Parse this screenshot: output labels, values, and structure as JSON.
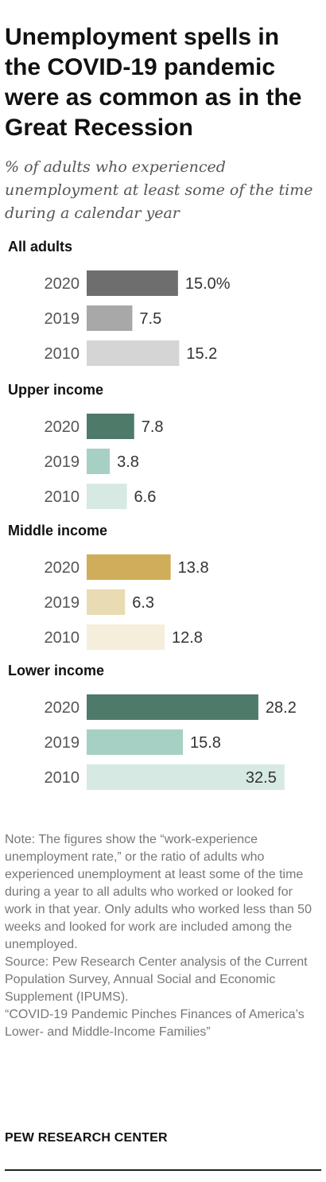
{
  "header": {
    "title": "Unemployment spells in the COVID-19 pandemic were as common as in the Great Recession",
    "subtitle": "% of adults who experienced unemployment at least some of the time during a calendar year"
  },
  "chart_data": {
    "type": "bar",
    "orientation": "horizontal",
    "xlim": [
      0,
      35
    ],
    "grid": false,
    "groups": [
      {
        "name": "All adults",
        "bars": [
          {
            "category": "2020",
            "value": 15.0,
            "label": "15.0%",
            "color": "#6e6e6e"
          },
          {
            "category": "2019",
            "value": 7.5,
            "label": "7.5",
            "color": "#a8a8a8"
          },
          {
            "category": "2010",
            "value": 15.2,
            "label": "15.2",
            "color": "#d5d5d5"
          }
        ]
      },
      {
        "name": "Upper income",
        "bars": [
          {
            "category": "2020",
            "value": 7.8,
            "label": "7.8",
            "color": "#4e7a6a"
          },
          {
            "category": "2019",
            "value": 3.8,
            "label": "3.8",
            "color": "#a7d0c5"
          },
          {
            "category": "2010",
            "value": 6.6,
            "label": "6.6",
            "color": "#d6e9e3"
          }
        ]
      },
      {
        "name": "Middle income",
        "bars": [
          {
            "category": "2020",
            "value": 13.8,
            "label": "13.8",
            "color": "#d0ad5a"
          },
          {
            "category": "2019",
            "value": 6.3,
            "label": "6.3",
            "color": "#e9dbb2"
          },
          {
            "category": "2010",
            "value": 12.8,
            "label": "12.8",
            "color": "#f5eedb"
          }
        ]
      },
      {
        "name": "Lower income",
        "bars": [
          {
            "category": "2020",
            "value": 28.2,
            "label": "28.2",
            "color": "#4e7a6a"
          },
          {
            "category": "2019",
            "value": 15.8,
            "label": "15.8",
            "color": "#a7d0c5"
          },
          {
            "category": "2010",
            "value": 32.5,
            "label": "32.5",
            "color": "#d6e9e3"
          }
        ]
      }
    ]
  },
  "footer": {
    "note": "Note: The figures show the “work-experience unemployment rate,” or the ratio of adults who experienced unemployment at least some of the time during a year to all adults who worked or looked for work in that year. Only adults who worked less than 50 weeks and looked for work are included among the unemployed.",
    "source": "Source: Pew Research Center analysis of the Current Population Survey, Annual Social and Economic Supplement (IPUMS).",
    "report_title": "“COVID-19 Pandemic Pinches Finances of America’s Lower- and Middle-Income Families”",
    "brand": "PEW RESEARCH CENTER"
  }
}
